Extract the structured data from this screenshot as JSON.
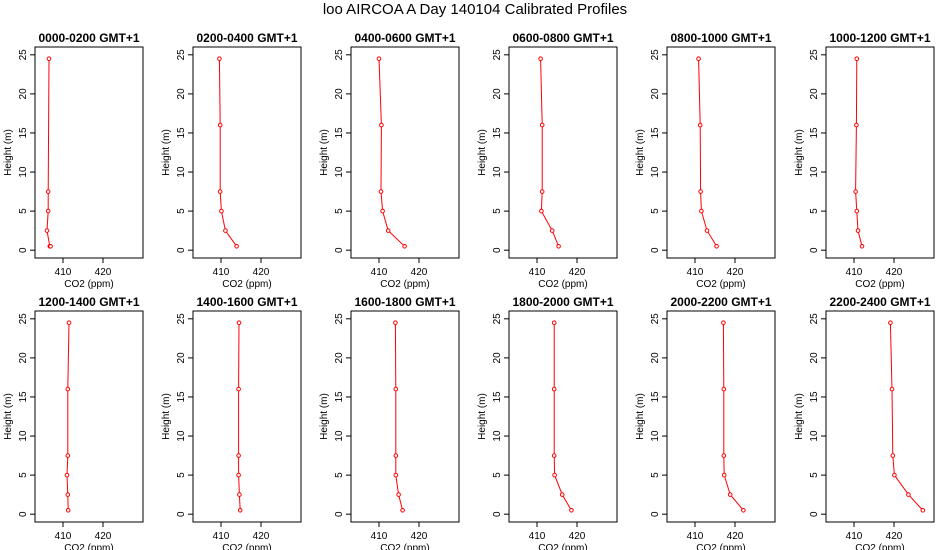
{
  "title": "loo AIRCOA A  Day 140104  Calibrated Profiles",
  "colors": {
    "profile": "#ff0000",
    "axis": "#000000"
  },
  "chart_data": {
    "type": "line",
    "xlabel": "CO2 (ppm)",
    "ylabel": "Height (m)",
    "xlim": [
      403,
      430
    ],
    "ylim": [
      -1,
      26
    ],
    "xticks": [
      410,
      420
    ],
    "yticks": [
      0,
      5,
      10,
      15,
      20,
      25
    ],
    "grid": false,
    "panels": [
      {
        "title": "0000-0200 GMT+1",
        "x": [
          406.5,
          406.3,
          406.3,
          406.0,
          406.7,
          406.9
        ],
        "y": [
          24.5,
          7.5,
          5.0,
          2.5,
          0.5,
          0.5
        ]
      },
      {
        "title": "0200-0400 GMT+1",
        "x": [
          409.6,
          409.8,
          409.8,
          410.1,
          411.1,
          413.9
        ],
        "y": [
          24.5,
          16.0,
          7.5,
          5.0,
          2.5,
          0.5
        ]
      },
      {
        "title": "0400-0600 GMT+1",
        "x": [
          410.0,
          410.6,
          410.5,
          410.9,
          412.3,
          416.4
        ],
        "y": [
          24.5,
          16.0,
          7.5,
          5.0,
          2.5,
          0.5
        ]
      },
      {
        "title": "0600-0800 GMT+1",
        "x": [
          410.9,
          411.3,
          411.3,
          411.1,
          413.8,
          415.4
        ],
        "y": [
          24.5,
          16.0,
          7.5,
          5.0,
          2.5,
          0.5
        ]
      },
      {
        "title": "0800-1000 GMT+1",
        "x": [
          410.9,
          411.3,
          411.4,
          411.6,
          413.0,
          415.4
        ],
        "y": [
          24.5,
          16.0,
          7.5,
          5.0,
          2.5,
          0.5
        ]
      },
      {
        "title": "1000-1200 GMT+1",
        "x": [
          410.7,
          410.6,
          410.4,
          410.7,
          411.0,
          412.0
        ],
        "y": [
          24.5,
          16.0,
          7.5,
          5.0,
          2.5,
          0.5
        ]
      },
      {
        "title": "1200-1400 GMT+1",
        "x": [
          411.5,
          411.2,
          411.2,
          411.0,
          411.2,
          411.3
        ],
        "y": [
          24.5,
          16.0,
          7.5,
          5.0,
          2.5,
          0.5
        ]
      },
      {
        "title": "1400-1600 GMT+1",
        "x": [
          414.5,
          414.4,
          414.4,
          414.4,
          414.6,
          414.8
        ],
        "y": [
          24.5,
          16.0,
          7.5,
          5.0,
          2.5,
          0.5
        ]
      },
      {
        "title": "1600-1800 GMT+1",
        "x": [
          414.1,
          414.2,
          414.2,
          414.2,
          414.9,
          415.9
        ],
        "y": [
          24.5,
          16.0,
          7.5,
          5.0,
          2.5,
          0.5
        ]
      },
      {
        "title": "1800-2000 GMT+1",
        "x": [
          414.3,
          414.3,
          414.3,
          414.4,
          416.3,
          418.6
        ],
        "y": [
          24.5,
          16.0,
          7.5,
          5.0,
          2.5,
          0.5
        ]
      },
      {
        "title": "2000-2200 GMT+1",
        "x": [
          417.1,
          417.2,
          417.2,
          417.3,
          418.8,
          422.1
        ],
        "y": [
          24.5,
          16.0,
          7.5,
          5.0,
          2.5,
          0.5
        ]
      },
      {
        "title": "2200-2400 GMT+1",
        "x": [
          419.1,
          419.5,
          419.7,
          420.1,
          423.6,
          427.2
        ],
        "y": [
          24.5,
          16.0,
          7.5,
          5.0,
          2.5,
          0.5
        ]
      }
    ]
  }
}
